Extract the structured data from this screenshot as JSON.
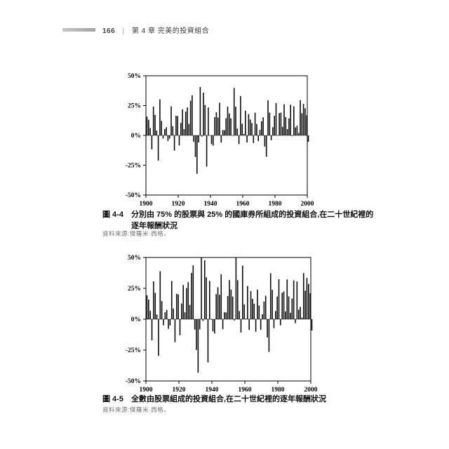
{
  "header": {
    "page_number": "166",
    "separator": "|",
    "chapter": "第 4 章  完美的投資組合"
  },
  "figure1": {
    "label": "圖 4-4",
    "caption": "分別由 75% 的股票與 25% 的國庫券所組成的投資組合,在二十世紀裡的逐年報酬狀況",
    "source": "資料來源:傑羅米·西格。"
  },
  "figure2": {
    "label": "圖 4-5",
    "caption": "全數由股票組成的投資組合,在二十世紀裡的逐年報酬狀況",
    "source": "資料來源:傑羅米·西格。"
  },
  "colors": {
    "bar": "#0d0d0d",
    "axis": "#000000",
    "header_rule": "#ababab"
  },
  "chart_data": [
    {
      "type": "bar",
      "title": "分別由 75% 的股票與 25% 的國庫券所組成的投資組合,在二十世紀裡的逐年報酬狀況",
      "years": {
        "start": 1900,
        "end": 2000
      },
      "values": [
        15.7,
        13.1,
        6.2,
        -11.7,
        24.2,
        17.1,
        4.0,
        -21.1,
        30.2,
        12.2,
        -2.6,
        5.3,
        6.8,
        -4.7,
        -2.7,
        24.4,
        7.7,
        -12.8,
        16.5,
        16.2,
        -8.4,
        10.5,
        21.8,
        5.3,
        19.9,
        23.5,
        9.7,
        29.1,
        33.7,
        -5.3,
        -18.1,
        -32.2,
        -5.9,
        40.6,
        -1.0,
        35.8,
        25.5,
        -26.2,
        23.4,
        -0.3,
        -7.3,
        -8.6,
        15.3,
        19.5,
        15.0,
        27.4,
        -6.0,
        4.5,
        4.4,
        14.4,
        24.2,
        18.4,
        14.2,
        -0.3,
        39.8,
        24.1,
        5.7,
        -7.3,
        33.0,
        9.8,
        1.2,
        20.7,
        -5.9,
        17.9,
        13.3,
        10.4,
        -6.4,
        19.1,
        9.6,
        -4.7,
        4.6,
        11.8,
        15.2,
        -9.3,
        -17.9,
        29.4,
        19.1,
        -4.1,
        6.8,
        16.4,
        27.1,
        0.0,
        18.7,
        19.1,
        7.2,
        26.1,
        15.4,
        5.3,
        14.2,
        25.7,
        -0.5,
        24.4,
        6.7,
        8.2,
        2.0,
        29.5,
        18.6,
        26.4,
        22.7,
        16.9,
        -5.4
      ],
      "ylim": [
        -50,
        50
      ],
      "ytick_values": [
        50,
        25,
        0,
        -25,
        -50
      ],
      "ytick_labels": [
        "50%",
        "25%",
        "0%",
        "-25%",
        "-50%"
      ],
      "xticks": [
        1900,
        1920,
        1940,
        1960,
        1980,
        2000
      ],
      "grid": "off",
      "legend": "none",
      "ylabel": "",
      "xlabel": ""
    },
    {
      "type": "bar",
      "title": "全數由股票組成的投資組合,在二十世紀裡的逐年報酬狀況",
      "years": {
        "start": 1900,
        "end": 2000
      },
      "values": [
        19.4,
        15.9,
        6.7,
        -17.1,
        30.7,
        21.3,
        3.8,
        -29.6,
        38.8,
        14.7,
        -4.9,
        5.6,
        7.5,
        -7.8,
        -5.1,
        31.0,
        8.7,
        -18.6,
        20.5,
        20.1,
        -13.0,
        12.7,
        27.7,
        5.7,
        25.2,
        30.0,
        11.6,
        37.5,
        43.6,
        -8.4,
        -24.9,
        -43.3,
        -8.2,
        54.0,
        -1.4,
        47.7,
        33.9,
        -35.0,
        31.1,
        -0.4,
        -9.8,
        -11.6,
        20.3,
        25.9,
        19.8,
        36.4,
        -8.1,
        5.7,
        5.5,
        18.8,
        31.7,
        24.0,
        18.4,
        -1.0,
        52.6,
        31.6,
        6.6,
        -10.8,
        43.4,
        12.0,
        0.5,
        26.9,
        -8.7,
        22.8,
        16.5,
        12.5,
        -10.1,
        24.0,
        11.1,
        -8.5,
        4.0,
        14.3,
        19.0,
        -14.7,
        -26.5,
        37.2,
        23.8,
        -7.2,
        6.6,
        18.4,
        32.4,
        -4.9,
        21.4,
        22.5,
        6.3,
        32.2,
        18.5,
        5.2,
        16.8,
        31.5,
        -3.2,
        30.6,
        7.7,
        10.0,
        1.3,
        37.4,
        23.1,
        33.4,
        28.6,
        21.0,
        -9.1
      ],
      "ylim": [
        -50,
        50
      ],
      "ytick_values": [
        50,
        25,
        0,
        -25,
        -50
      ],
      "ytick_labels": [
        "50%",
        "25%",
        "0%",
        "-25%",
        "-50%"
      ],
      "xticks": [
        1900,
        1920,
        1940,
        1960,
        1980,
        2000
      ],
      "grid": "off",
      "legend": "none",
      "ylabel": "",
      "xlabel": ""
    }
  ]
}
